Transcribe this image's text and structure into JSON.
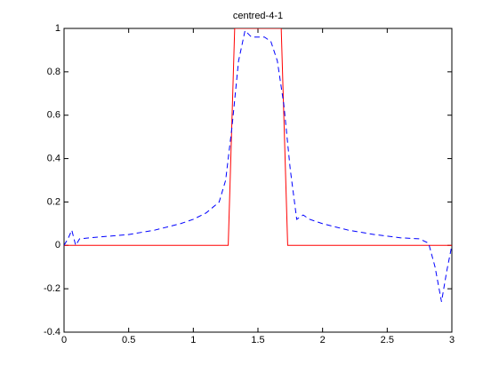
{
  "chart_data": {
    "type": "line",
    "title": "centred-4-1",
    "xlim": [
      0,
      3
    ],
    "xticks": [
      0,
      0.5,
      1,
      1.5,
      2,
      2.5,
      3
    ],
    "ylim": [
      -0.4,
      1
    ],
    "yticks": [
      -0.4,
      -0.2,
      0,
      0.2,
      0.4,
      0.6,
      0.8,
      1
    ],
    "series": [
      {
        "color": "#ff0000",
        "dash": false,
        "x": [
          0,
          1.27,
          1.32,
          1.68,
          1.73,
          3
        ],
        "values": [
          0,
          0,
          1,
          1,
          0,
          0
        ]
      },
      {
        "color": "#0000ff",
        "dash": true,
        "x": [
          0,
          0.03,
          0.06,
          0.09,
          0.12,
          0.2,
          0.3,
          0.5,
          0.7,
          0.9,
          1.0,
          1.1,
          1.2,
          1.25,
          1.3,
          1.35,
          1.4,
          1.45,
          1.5,
          1.55,
          1.6,
          1.65,
          1.7,
          1.75,
          1.8,
          1.85,
          1.9,
          2.0,
          2.2,
          2.4,
          2.6,
          2.75,
          2.82,
          2.87,
          2.92,
          2.96,
          3.0
        ],
        "values": [
          0,
          0.03,
          0.07,
          0.0,
          0.03,
          0.035,
          0.04,
          0.05,
          0.07,
          0.1,
          0.12,
          0.15,
          0.2,
          0.3,
          0.55,
          0.85,
          0.99,
          0.96,
          0.96,
          0.96,
          0.94,
          0.85,
          0.65,
          0.35,
          0.12,
          0.14,
          0.12,
          0.1,
          0.07,
          0.05,
          0.035,
          0.03,
          0.01,
          -0.1,
          -0.26,
          -0.12,
          0
        ]
      }
    ]
  }
}
